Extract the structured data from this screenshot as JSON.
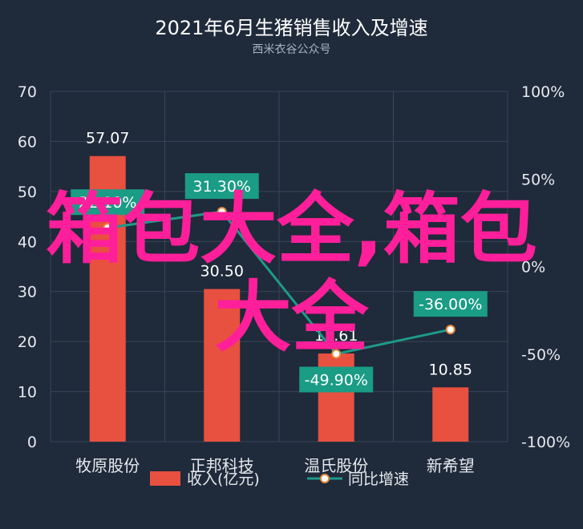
{
  "chart_data": {
    "type": "bar",
    "title": "2021年6月生猪销售收入及增速",
    "subtitle": "西米衣谷公众号",
    "categories": [
      "牧原股份",
      "正邦科技",
      "温氏股份",
      "新希望"
    ],
    "series": [
      {
        "name": "收入(亿元)",
        "type": "bar",
        "axis": "left",
        "values": [
          57.07,
          30.5,
          17.61,
          10.85
        ],
        "labels": [
          "57.07",
          "30.50",
          "17.61",
          "10.85"
        ],
        "color": "#e8503f"
      },
      {
        "name": "同比增速",
        "type": "line",
        "axis": "right",
        "values": [
          22.1,
          31.3,
          -49.9,
          -36.0
        ],
        "labels": [
          "22.10%",
          "31.30%",
          "-49.90%",
          "-36.00%"
        ],
        "color": "#1e9a8a"
      }
    ],
    "left_axis": {
      "min": 0,
      "max": 70,
      "ticks": [
        "0",
        "10",
        "20",
        "30",
        "40",
        "50",
        "60",
        "70"
      ]
    },
    "right_axis": {
      "min": -100,
      "max": 100,
      "ticks": [
        "-100%",
        "-50%",
        "0%",
        "50%",
        "100%"
      ]
    },
    "grid": true,
    "legend": "bottom"
  },
  "watermark": {
    "line1": "箱包大全,箱包",
    "line2": "大全"
  },
  "colors": {
    "background": "#1f2a3a",
    "tag": "#1a9c85",
    "marker": "#e8883b",
    "watermark": "#ff1f9a"
  }
}
